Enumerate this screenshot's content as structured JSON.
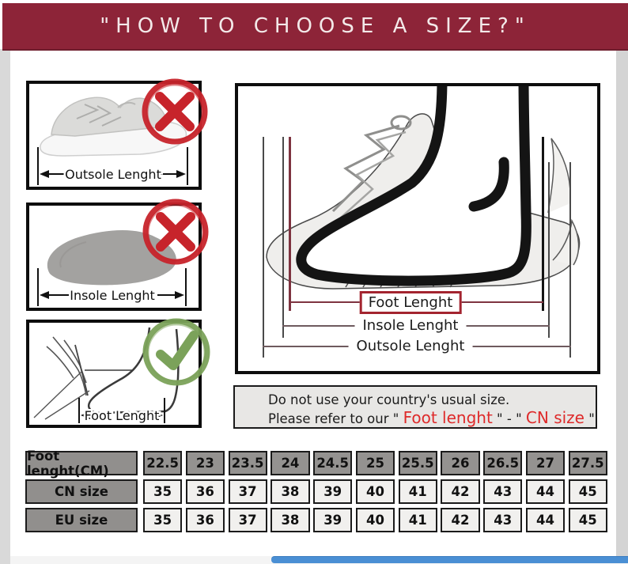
{
  "header": {
    "title": "\"HOW TO CHOOSE A SIZE?\""
  },
  "panels": [
    {
      "label": "Outsole Lenght",
      "badge": "cross-mark",
      "illustration": "sneaker-side-view"
    },
    {
      "label": "Insole Lenght",
      "badge": "cross-mark",
      "illustration": "insole-top-view"
    },
    {
      "label": "Foot Lenght",
      "badge": "check-mark",
      "illustration": "hand-measuring-foot"
    }
  ],
  "diagram": {
    "foot_label": "Foot Lenght",
    "insole_label": "Insole Lenght",
    "outsole_label": "Outsole Lenght"
  },
  "note": {
    "line1": "Do not use your country's usual size.",
    "line2": {
      "s1": "Please refer to our \" ",
      "s2": "Foot lenght",
      "s3": " \" - \" ",
      "s4": "CN size",
      "s5": " \""
    }
  },
  "size_table": {
    "rows": [
      {
        "header": "Foot lenght(CM)",
        "style": "gray",
        "values": [
          "22.5",
          "23",
          "23.5",
          "24",
          "24.5",
          "25",
          "25.5",
          "26",
          "26.5",
          "27",
          "27.5"
        ]
      },
      {
        "header": "CN size",
        "style": "light",
        "values": [
          "35",
          "36",
          "37",
          "38",
          "39",
          "40",
          "41",
          "42",
          "43",
          "44",
          "45"
        ]
      },
      {
        "header": "EU size",
        "style": "light",
        "values": [
          "35",
          "36",
          "37",
          "38",
          "39",
          "40",
          "41",
          "42",
          "43",
          "44",
          "45"
        ]
      }
    ]
  },
  "colors": {
    "header_maroon": "#8d2438",
    "alert_red": "#c7242b",
    "success_green": "#7ba25a",
    "highlight_red": "#de2a2a",
    "foot_line_maroon": "#7e3340",
    "scrollbar_blue": "#4a8fd4",
    "table_gray": "#918f8d",
    "table_light": "#f1f0ee"
  }
}
